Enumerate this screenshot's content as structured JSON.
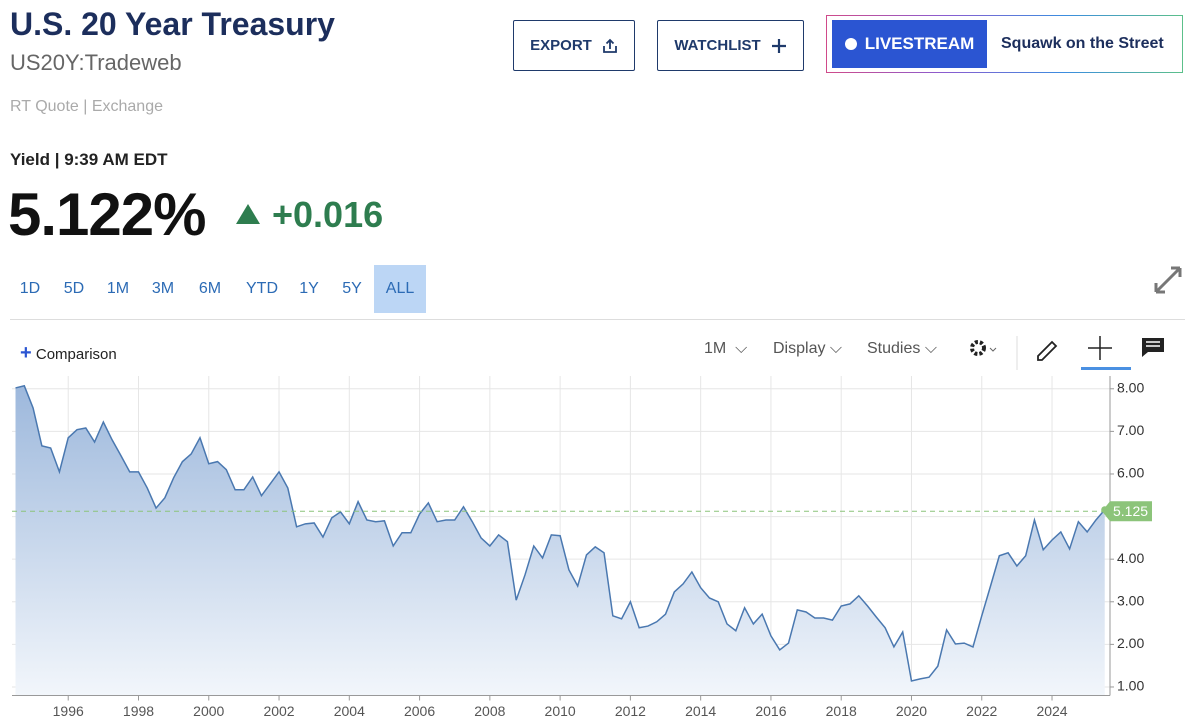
{
  "header": {
    "title": "U.S. 20 Year Treasury",
    "symbol": "US20Y:Tradeweb",
    "quote_type": "RT Quote | Exchange"
  },
  "buttons": {
    "export": "EXPORT",
    "watchlist": "WATCHLIST",
    "livestream": "LIVESTREAM",
    "show": "Squawk on the Street"
  },
  "quote": {
    "label": "Yield | 9:39 AM EDT",
    "price": "5.122%",
    "change": "+0.016"
  },
  "ranges": {
    "items": [
      "1D",
      "5D",
      "1M",
      "3M",
      "6M",
      "YTD",
      "1Y",
      "5Y",
      "ALL"
    ],
    "selected": "ALL"
  },
  "toolbar": {
    "comparison": "Comparison",
    "interval": "1M",
    "display": "Display",
    "studies": "Studies"
  },
  "chart_data": {
    "type": "area",
    "color": "#4a78b0",
    "grid": true,
    "last_value": 5.125,
    "last_color": "#8cc47a",
    "xlim": [
      1994.4,
      2025.65
    ],
    "ylim": [
      0.8,
      8.3
    ],
    "xticks": [
      1996,
      1998,
      2000,
      2002,
      2004,
      2006,
      2008,
      2010,
      2012,
      2014,
      2016,
      2018,
      2020,
      2022,
      2024
    ],
    "yticks": [
      {
        "value": 1,
        "label": "1.00"
      },
      {
        "value": 2,
        "label": "2.00"
      },
      {
        "value": 3,
        "label": "3.00"
      },
      {
        "value": 4,
        "label": "4.00"
      },
      {
        "value": 5,
        "label": "5.00"
      },
      {
        "value": 6,
        "label": "6.00"
      },
      {
        "value": 7,
        "label": "7.00"
      },
      {
        "value": 8,
        "label": "8.00"
      }
    ],
    "x": [
      1994.5,
      1994.75,
      1995,
      1995.25,
      1995.5,
      1995.75,
      1996,
      1996.25,
      1996.5,
      1996.75,
      1997,
      1997.25,
      1997.5,
      1997.75,
      1998,
      1998.25,
      1998.5,
      1998.75,
      1999,
      1999.25,
      1999.5,
      1999.75,
      2000,
      2000.25,
      2000.5,
      2000.75,
      2001,
      2001.25,
      2001.5,
      2001.75,
      2002,
      2002.25,
      2002.5,
      2002.75,
      2003,
      2003.25,
      2003.5,
      2003.75,
      2004,
      2004.25,
      2004.5,
      2004.75,
      2005,
      2005.25,
      2005.5,
      2005.75,
      2006,
      2006.25,
      2006.5,
      2006.75,
      2007,
      2007.25,
      2007.5,
      2007.75,
      2008,
      2008.25,
      2008.5,
      2008.75,
      2009,
      2009.25,
      2009.5,
      2009.75,
      2010,
      2010.25,
      2010.5,
      2010.75,
      2011,
      2011.25,
      2011.5,
      2011.75,
      2012,
      2012.25,
      2012.5,
      2012.75,
      2013,
      2013.25,
      2013.5,
      2013.75,
      2014,
      2014.25,
      2014.5,
      2014.75,
      2015,
      2015.25,
      2015.5,
      2015.75,
      2016,
      2016.25,
      2016.5,
      2016.75,
      2017,
      2017.25,
      2017.5,
      2017.75,
      2018,
      2018.25,
      2018.5,
      2018.75,
      2019,
      2019.25,
      2019.5,
      2019.75,
      2020,
      2020.25,
      2020.5,
      2020.75,
      2021,
      2021.25,
      2021.5,
      2021.75,
      2022,
      2022.25,
      2022.5,
      2022.75,
      2023,
      2023.25,
      2023.5,
      2023.75,
      2024,
      2024.25,
      2024.5,
      2024.75,
      2025,
      2025.25,
      2025.5
    ],
    "values": [
      8.02,
      8.07,
      7.55,
      6.66,
      6.61,
      6.05,
      6.85,
      7.04,
      7.08,
      6.75,
      7.22,
      6.8,
      6.43,
      6.05,
      6.05,
      5.67,
      5.2,
      5.44,
      5.91,
      6.29,
      6.47,
      6.85,
      6.24,
      6.29,
      6.1,
      5.63,
      5.63,
      5.93,
      5.49,
      5.77,
      6.05,
      5.67,
      4.76,
      4.83,
      4.85,
      4.52,
      4.97,
      5.11,
      4.83,
      5.35,
      4.92,
      4.88,
      4.9,
      4.31,
      4.62,
      4.62,
      5.06,
      5.32,
      4.88,
      4.92,
      4.92,
      5.23,
      4.88,
      4.5,
      4.31,
      4.57,
      4.41,
      3.04,
      3.63,
      4.31,
      4.03,
      4.57,
      4.55,
      3.75,
      3.37,
      4.1,
      4.29,
      4.15,
      2.67,
      2.6,
      3.0,
      2.39,
      2.43,
      2.53,
      2.71,
      3.23,
      3.42,
      3.7,
      3.33,
      3.09,
      3.0,
      2.48,
      2.32,
      2.86,
      2.48,
      2.71,
      2.2,
      1.87,
      2.03,
      2.81,
      2.76,
      2.62,
      2.62,
      2.57,
      2.9,
      2.95,
      3.14,
      2.9,
      2.64,
      2.39,
      1.94,
      2.29,
      1.14,
      1.19,
      1.23,
      1.49,
      2.34,
      2.01,
      2.03,
      1.94,
      2.67,
      3.37,
      4.08,
      4.15,
      3.84,
      4.08,
      4.92,
      4.22,
      4.45,
      4.64,
      4.24,
      4.88,
      4.64,
      4.92,
      5.16
    ]
  }
}
